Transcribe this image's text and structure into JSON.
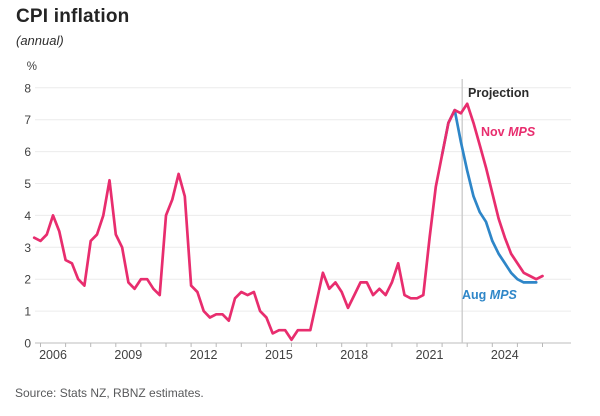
{
  "header": {
    "title": "CPI inflation",
    "subtitle": "(annual)"
  },
  "source": "Source: Stats NZ, RBNZ estimates.",
  "annotations": {
    "projection_label": "Projection",
    "nov": {
      "regular": "Nov ",
      "italic": "MPS"
    },
    "aug": {
      "regular": "Aug ",
      "italic": "MPS"
    }
  },
  "colors": {
    "nov_mps": "#e82d6e",
    "aug_mps": "#2e86c8",
    "grid": "#ececec",
    "axis": "#bdbdbd",
    "tick": "#b8b8b8",
    "projection_line": "#c9c9c9",
    "axis_text": "#414141"
  },
  "chart_data": {
    "type": "line",
    "title": "CPI inflation",
    "subtitle": "(annual)",
    "ylabel": "%",
    "xlabel": "",
    "ylim": [
      0,
      8
    ],
    "yticks": [
      0,
      1,
      2,
      3,
      4,
      5,
      6,
      7,
      8
    ],
    "xlim": [
      2005.7,
      2026.3
    ],
    "xtick_labels": [
      "2006",
      "2009",
      "2012",
      "2015",
      "2018",
      "2021",
      "2024"
    ],
    "xtick_label_years": [
      2006,
      2009,
      2012,
      2015,
      2018,
      2021,
      2024
    ],
    "minor_tick_year_start": 2006,
    "minor_tick_year_end": 2026,
    "grid": "horizontal",
    "legend_position": "annotated-on-chart",
    "projection_start_year": 2022.8,
    "series": [
      {
        "name": "Nov MPS",
        "color": "#e82d6e",
        "points": [
          [
            2005.75,
            3.3
          ],
          [
            2006,
            3.2
          ],
          [
            2006.25,
            3.4
          ],
          [
            2006.5,
            4.0
          ],
          [
            2006.75,
            3.5
          ],
          [
            2007,
            2.6
          ],
          [
            2007.25,
            2.5
          ],
          [
            2007.5,
            2.0
          ],
          [
            2007.75,
            1.8
          ],
          [
            2008,
            3.2
          ],
          [
            2008.25,
            3.4
          ],
          [
            2008.5,
            4.0
          ],
          [
            2008.75,
            5.1
          ],
          [
            2009,
            3.4
          ],
          [
            2009.25,
            3.0
          ],
          [
            2009.5,
            1.9
          ],
          [
            2009.75,
            1.7
          ],
          [
            2010,
            2.0
          ],
          [
            2010.25,
            2.0
          ],
          [
            2010.5,
            1.7
          ],
          [
            2010.75,
            1.5
          ],
          [
            2011,
            4.0
          ],
          [
            2011.25,
            4.5
          ],
          [
            2011.5,
            5.3
          ],
          [
            2011.75,
            4.6
          ],
          [
            2012,
            1.8
          ],
          [
            2012.25,
            1.6
          ],
          [
            2012.5,
            1.0
          ],
          [
            2012.75,
            0.8
          ],
          [
            2013,
            0.9
          ],
          [
            2013.25,
            0.9
          ],
          [
            2013.5,
            0.7
          ],
          [
            2013.75,
            1.4
          ],
          [
            2014,
            1.6
          ],
          [
            2014.25,
            1.5
          ],
          [
            2014.5,
            1.6
          ],
          [
            2014.75,
            1.0
          ],
          [
            2015,
            0.8
          ],
          [
            2015.25,
            0.3
          ],
          [
            2015.5,
            0.4
          ],
          [
            2015.75,
            0.4
          ],
          [
            2016,
            0.1
          ],
          [
            2016.25,
            0.4
          ],
          [
            2016.5,
            0.4
          ],
          [
            2016.75,
            0.4
          ],
          [
            2017,
            1.3
          ],
          [
            2017.25,
            2.2
          ],
          [
            2017.5,
            1.7
          ],
          [
            2017.75,
            1.9
          ],
          [
            2018,
            1.6
          ],
          [
            2018.25,
            1.1
          ],
          [
            2018.5,
            1.5
          ],
          [
            2018.75,
            1.9
          ],
          [
            2019,
            1.9
          ],
          [
            2019.25,
            1.5
          ],
          [
            2019.5,
            1.7
          ],
          [
            2019.75,
            1.5
          ],
          [
            2020,
            1.9
          ],
          [
            2020.25,
            2.5
          ],
          [
            2020.5,
            1.5
          ],
          [
            2020.75,
            1.4
          ],
          [
            2021,
            1.4
          ],
          [
            2021.25,
            1.5
          ],
          [
            2021.5,
            3.3
          ],
          [
            2021.75,
            4.9
          ],
          [
            2022,
            5.9
          ],
          [
            2022.25,
            6.9
          ],
          [
            2022.5,
            7.3
          ],
          [
            2022.75,
            7.2
          ],
          [
            2023,
            7.5
          ],
          [
            2023.25,
            6.9
          ],
          [
            2023.5,
            6.2
          ],
          [
            2023.75,
            5.5
          ],
          [
            2024,
            4.7
          ],
          [
            2024.25,
            3.9
          ],
          [
            2024.5,
            3.3
          ],
          [
            2024.75,
            2.8
          ],
          [
            2025,
            2.5
          ],
          [
            2025.25,
            2.2
          ],
          [
            2025.5,
            2.1
          ],
          [
            2025.75,
            2.0
          ],
          [
            2026,
            2.1
          ]
        ]
      },
      {
        "name": "Aug MPS",
        "color": "#2e86c8",
        "points": [
          [
            2022,
            5.9
          ],
          [
            2022.25,
            6.9
          ],
          [
            2022.5,
            7.3
          ],
          [
            2022.75,
            6.3
          ],
          [
            2023,
            5.4
          ],
          [
            2023.25,
            4.6
          ],
          [
            2023.5,
            4.1
          ],
          [
            2023.75,
            3.8
          ],
          [
            2024,
            3.2
          ],
          [
            2024.25,
            2.8
          ],
          [
            2024.5,
            2.5
          ],
          [
            2024.75,
            2.2
          ],
          [
            2025,
            2.0
          ],
          [
            2025.25,
            1.9
          ],
          [
            2025.5,
            1.9
          ],
          [
            2025.75,
            1.9
          ]
        ]
      }
    ]
  }
}
